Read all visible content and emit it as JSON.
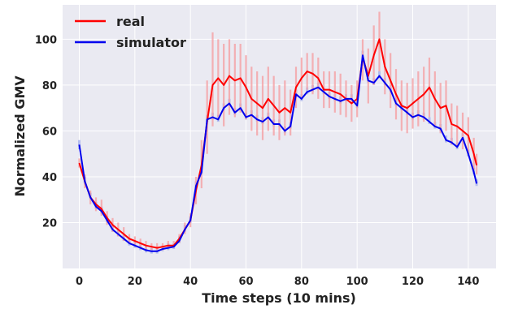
{
  "chart_data": {
    "type": "line",
    "xlabel": "Time steps (10 mins)",
    "ylabel": "Normalized GMV",
    "xlim": [
      -6,
      150
    ],
    "ylim": [
      0,
      115
    ],
    "xticks": [
      0,
      20,
      40,
      60,
      80,
      100,
      120,
      140
    ],
    "yticks": [
      20,
      40,
      60,
      80,
      100
    ],
    "grid": true,
    "background": "#eaeaf2",
    "legend_position": "top-left",
    "series": [
      {
        "name": "real",
        "color": "#ff0000",
        "band_color": "#f4a4a8",
        "points": [
          [
            0,
            46
          ],
          [
            2,
            38
          ],
          [
            4,
            31
          ],
          [
            6,
            28
          ],
          [
            8,
            26
          ],
          [
            10,
            22
          ],
          [
            12,
            19
          ],
          [
            14,
            17
          ],
          [
            16,
            15
          ],
          [
            18,
            13
          ],
          [
            20,
            12
          ],
          [
            22,
            11
          ],
          [
            24,
            10
          ],
          [
            26,
            9.5
          ],
          [
            28,
            9
          ],
          [
            30,
            9.5
          ],
          [
            32,
            10
          ],
          [
            34,
            10
          ],
          [
            36,
            13
          ],
          [
            38,
            17
          ],
          [
            40,
            21
          ],
          [
            42,
            34
          ],
          [
            44,
            45
          ],
          [
            46,
            64
          ],
          [
            48,
            80
          ],
          [
            50,
            83
          ],
          [
            52,
            80
          ],
          [
            54,
            84
          ],
          [
            56,
            82
          ],
          [
            58,
            83
          ],
          [
            60,
            79
          ],
          [
            62,
            74
          ],
          [
            64,
            72
          ],
          [
            66,
            70
          ],
          [
            68,
            74
          ],
          [
            70,
            71
          ],
          [
            72,
            68
          ],
          [
            74,
            70
          ],
          [
            76,
            68
          ],
          [
            78,
            79
          ],
          [
            80,
            83
          ],
          [
            82,
            86
          ],
          [
            84,
            85
          ],
          [
            86,
            83
          ],
          [
            88,
            78
          ],
          [
            90,
            78
          ],
          [
            92,
            77
          ],
          [
            94,
            76
          ],
          [
            96,
            74
          ],
          [
            98,
            72
          ],
          [
            100,
            74
          ],
          [
            102,
            92
          ],
          [
            104,
            84
          ],
          [
            106,
            93
          ],
          [
            108,
            100
          ],
          [
            110,
            88
          ],
          [
            112,
            82
          ],
          [
            114,
            76
          ],
          [
            116,
            71
          ],
          [
            118,
            70
          ],
          [
            120,
            72
          ],
          [
            122,
            74
          ],
          [
            124,
            76
          ],
          [
            126,
            79
          ],
          [
            128,
            74
          ],
          [
            130,
            70
          ],
          [
            132,
            71
          ],
          [
            134,
            63
          ],
          [
            136,
            62
          ],
          [
            138,
            60
          ],
          [
            140,
            58
          ],
          [
            142,
            50
          ],
          [
            143,
            45
          ]
        ],
        "band": [
          [
            0,
            44,
            48
          ],
          [
            2,
            35,
            41
          ],
          [
            4,
            28,
            34
          ],
          [
            6,
            25,
            31
          ],
          [
            8,
            23,
            30
          ],
          [
            10,
            19,
            25
          ],
          [
            12,
            16,
            22
          ],
          [
            14,
            14,
            20
          ],
          [
            16,
            12,
            18
          ],
          [
            18,
            11,
            15
          ],
          [
            20,
            10,
            14
          ],
          [
            22,
            9,
            13
          ],
          [
            24,
            8,
            12
          ],
          [
            26,
            8,
            11
          ],
          [
            28,
            8,
            11
          ],
          [
            30,
            8,
            11
          ],
          [
            32,
            9,
            12
          ],
          [
            34,
            9,
            12
          ],
          [
            36,
            11,
            15
          ],
          [
            38,
            15,
            20
          ],
          [
            40,
            18,
            24
          ],
          [
            42,
            28,
            40
          ],
          [
            44,
            35,
            56
          ],
          [
            46,
            50,
            82
          ],
          [
            48,
            62,
            103
          ],
          [
            50,
            66,
            100
          ],
          [
            52,
            62,
            98
          ],
          [
            54,
            67,
            100
          ],
          [
            56,
            66,
            98
          ],
          [
            58,
            68,
            98
          ],
          [
            60,
            65,
            93
          ],
          [
            62,
            60,
            88
          ],
          [
            64,
            58,
            86
          ],
          [
            66,
            56,
            84
          ],
          [
            68,
            60,
            88
          ],
          [
            70,
            58,
            84
          ],
          [
            72,
            56,
            80
          ],
          [
            74,
            58,
            82
          ],
          [
            76,
            58,
            78
          ],
          [
            78,
            70,
            88
          ],
          [
            80,
            74,
            92
          ],
          [
            82,
            78,
            94
          ],
          [
            84,
            76,
            94
          ],
          [
            86,
            74,
            92
          ],
          [
            88,
            70,
            86
          ],
          [
            90,
            70,
            86
          ],
          [
            92,
            68,
            86
          ],
          [
            94,
            67,
            85
          ],
          [
            96,
            66,
            82
          ],
          [
            98,
            64,
            80
          ],
          [
            100,
            66,
            82
          ],
          [
            102,
            82,
            100
          ],
          [
            104,
            72,
            96
          ],
          [
            106,
            80,
            106
          ],
          [
            108,
            86,
            112
          ],
          [
            110,
            76,
            100
          ],
          [
            112,
            70,
            94
          ],
          [
            114,
            65,
            87
          ],
          [
            116,
            60,
            82
          ],
          [
            118,
            59,
            81
          ],
          [
            120,
            61,
            83
          ],
          [
            122,
            62,
            86
          ],
          [
            124,
            64,
            88
          ],
          [
            126,
            66,
            92
          ],
          [
            128,
            62,
            86
          ],
          [
            130,
            59,
            81
          ],
          [
            132,
            60,
            82
          ],
          [
            134,
            54,
            72
          ],
          [
            136,
            53,
            71
          ],
          [
            138,
            52,
            68
          ],
          [
            140,
            50,
            66
          ],
          [
            142,
            43,
            57
          ],
          [
            143,
            41,
            50
          ]
        ]
      },
      {
        "name": "simulator",
        "color": "#0000ee",
        "band_color": "#aab4ee",
        "points": [
          [
            0,
            54
          ],
          [
            2,
            38
          ],
          [
            4,
            31
          ],
          [
            6,
            27
          ],
          [
            8,
            25
          ],
          [
            10,
            21
          ],
          [
            12,
            17
          ],
          [
            14,
            15
          ],
          [
            16,
            13
          ],
          [
            18,
            11
          ],
          [
            20,
            10
          ],
          [
            22,
            9
          ],
          [
            24,
            8
          ],
          [
            26,
            7.5
          ],
          [
            28,
            7.5
          ],
          [
            30,
            8.5
          ],
          [
            32,
            9
          ],
          [
            34,
            9.5
          ],
          [
            36,
            12
          ],
          [
            38,
            17
          ],
          [
            40,
            21
          ],
          [
            42,
            36
          ],
          [
            44,
            42
          ],
          [
            46,
            65
          ],
          [
            48,
            66
          ],
          [
            50,
            65
          ],
          [
            52,
            70
          ],
          [
            54,
            72
          ],
          [
            56,
            68
          ],
          [
            58,
            70
          ],
          [
            60,
            66
          ],
          [
            62,
            67
          ],
          [
            64,
            65
          ],
          [
            66,
            64
          ],
          [
            68,
            66
          ],
          [
            70,
            63
          ],
          [
            72,
            63
          ],
          [
            74,
            60
          ],
          [
            76,
            62
          ],
          [
            78,
            76
          ],
          [
            80,
            74
          ],
          [
            82,
            77
          ],
          [
            84,
            78
          ],
          [
            86,
            79
          ],
          [
            88,
            77
          ],
          [
            90,
            75
          ],
          [
            92,
            74
          ],
          [
            94,
            73
          ],
          [
            96,
            74
          ],
          [
            98,
            74
          ],
          [
            100,
            71
          ],
          [
            102,
            93
          ],
          [
            104,
            82
          ],
          [
            106,
            81
          ],
          [
            108,
            84
          ],
          [
            110,
            81
          ],
          [
            112,
            78
          ],
          [
            114,
            72
          ],
          [
            116,
            70
          ],
          [
            118,
            68
          ],
          [
            120,
            66
          ],
          [
            122,
            67
          ],
          [
            124,
            66
          ],
          [
            126,
            64
          ],
          [
            128,
            62
          ],
          [
            130,
            61
          ],
          [
            132,
            56
          ],
          [
            134,
            55
          ],
          [
            136,
            53
          ],
          [
            138,
            57
          ],
          [
            140,
            50
          ],
          [
            142,
            42
          ],
          [
            143,
            37
          ]
        ],
        "band": [
          [
            0,
            52,
            56
          ],
          [
            2,
            37,
            40
          ],
          [
            4,
            30,
            33
          ],
          [
            6,
            26,
            29
          ],
          [
            8,
            24,
            27
          ],
          [
            10,
            20,
            23
          ],
          [
            12,
            16,
            19
          ],
          [
            14,
            14,
            17
          ],
          [
            16,
            12,
            15
          ],
          [
            18,
            10,
            13
          ],
          [
            20,
            9,
            12
          ],
          [
            22,
            8,
            11
          ],
          [
            24,
            7,
            10
          ],
          [
            26,
            6.5,
            9
          ],
          [
            28,
            6.5,
            9
          ],
          [
            30,
            7.5,
            10
          ],
          [
            32,
            8,
            11
          ],
          [
            34,
            8.5,
            11
          ],
          [
            36,
            11,
            14
          ],
          [
            38,
            16,
            19
          ],
          [
            40,
            20,
            23
          ],
          [
            42,
            35,
            38
          ],
          [
            44,
            41,
            44
          ],
          [
            46,
            64,
            67
          ],
          [
            48,
            65,
            68
          ],
          [
            50,
            64,
            67
          ],
          [
            52,
            69,
            72
          ],
          [
            54,
            71,
            74
          ],
          [
            56,
            67,
            70
          ],
          [
            58,
            69,
            72
          ],
          [
            60,
            65,
            68
          ],
          [
            62,
            66,
            69
          ],
          [
            64,
            64,
            67
          ],
          [
            66,
            63,
            66
          ],
          [
            68,
            65,
            68
          ],
          [
            70,
            62,
            65
          ],
          [
            72,
            62,
            65
          ],
          [
            74,
            59,
            62
          ],
          [
            76,
            61,
            64
          ],
          [
            78,
            75,
            78
          ],
          [
            80,
            73,
            76
          ],
          [
            82,
            76,
            79
          ],
          [
            84,
            77,
            80
          ],
          [
            86,
            78,
            81
          ],
          [
            88,
            76,
            79
          ],
          [
            90,
            74,
            77
          ],
          [
            92,
            73,
            76
          ],
          [
            94,
            72,
            75
          ],
          [
            96,
            73,
            76
          ],
          [
            98,
            73,
            76
          ],
          [
            100,
            70,
            73
          ],
          [
            102,
            92,
            95
          ],
          [
            104,
            81,
            84
          ],
          [
            106,
            80,
            83
          ],
          [
            108,
            83,
            86
          ],
          [
            110,
            80,
            83
          ],
          [
            112,
            77,
            80
          ],
          [
            114,
            71,
            74
          ],
          [
            116,
            69,
            72
          ],
          [
            118,
            67,
            70
          ],
          [
            120,
            65,
            68
          ],
          [
            122,
            66,
            69
          ],
          [
            124,
            65,
            68
          ],
          [
            126,
            63,
            66
          ],
          [
            128,
            61,
            64
          ],
          [
            130,
            60,
            63
          ],
          [
            132,
            55,
            58
          ],
          [
            134,
            54,
            57
          ],
          [
            136,
            52,
            55
          ],
          [
            138,
            56,
            59
          ],
          [
            140,
            49,
            52
          ],
          [
            142,
            41,
            44
          ],
          [
            143,
            36,
            39
          ]
        ]
      }
    ]
  }
}
